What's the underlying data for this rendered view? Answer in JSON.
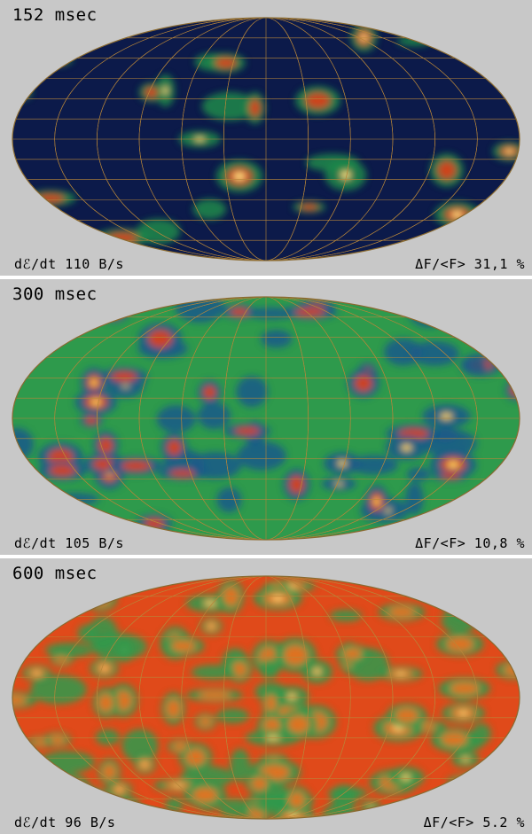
{
  "panels": [
    {
      "time": "152 msec",
      "energy_rate": "dℰ/dt  110 B/s",
      "flux_fluctuation": "ΔF/<F>  31,1 %",
      "palette": {
        "background": "#0c1a4a",
        "mid": "#1f8a4a",
        "warm": "#e0401a",
        "hot": "#ffe080",
        "grid": "#b8863a"
      }
    },
    {
      "time": "300 msec",
      "energy_rate": "dℰ/dt  105 B/s",
      "flux_fluctuation": "ΔF/<F>  10,8 %",
      "palette": {
        "background": "#2e9a4c",
        "mid": "#1a5a8a",
        "warm": "#e0401a",
        "hot": "#ffd060",
        "grid": "#b8863a"
      }
    },
    {
      "time": "600 msec",
      "energy_rate": "dℰ/dt  96 B/s",
      "flux_fluctuation": "ΔF/<F>  5.2 %",
      "palette": {
        "background": "#e04a1a",
        "mid": "#2e9a4c",
        "warm": "#f07020",
        "hot": "#ffd070",
        "grid": "#b8863a"
      }
    }
  ]
}
